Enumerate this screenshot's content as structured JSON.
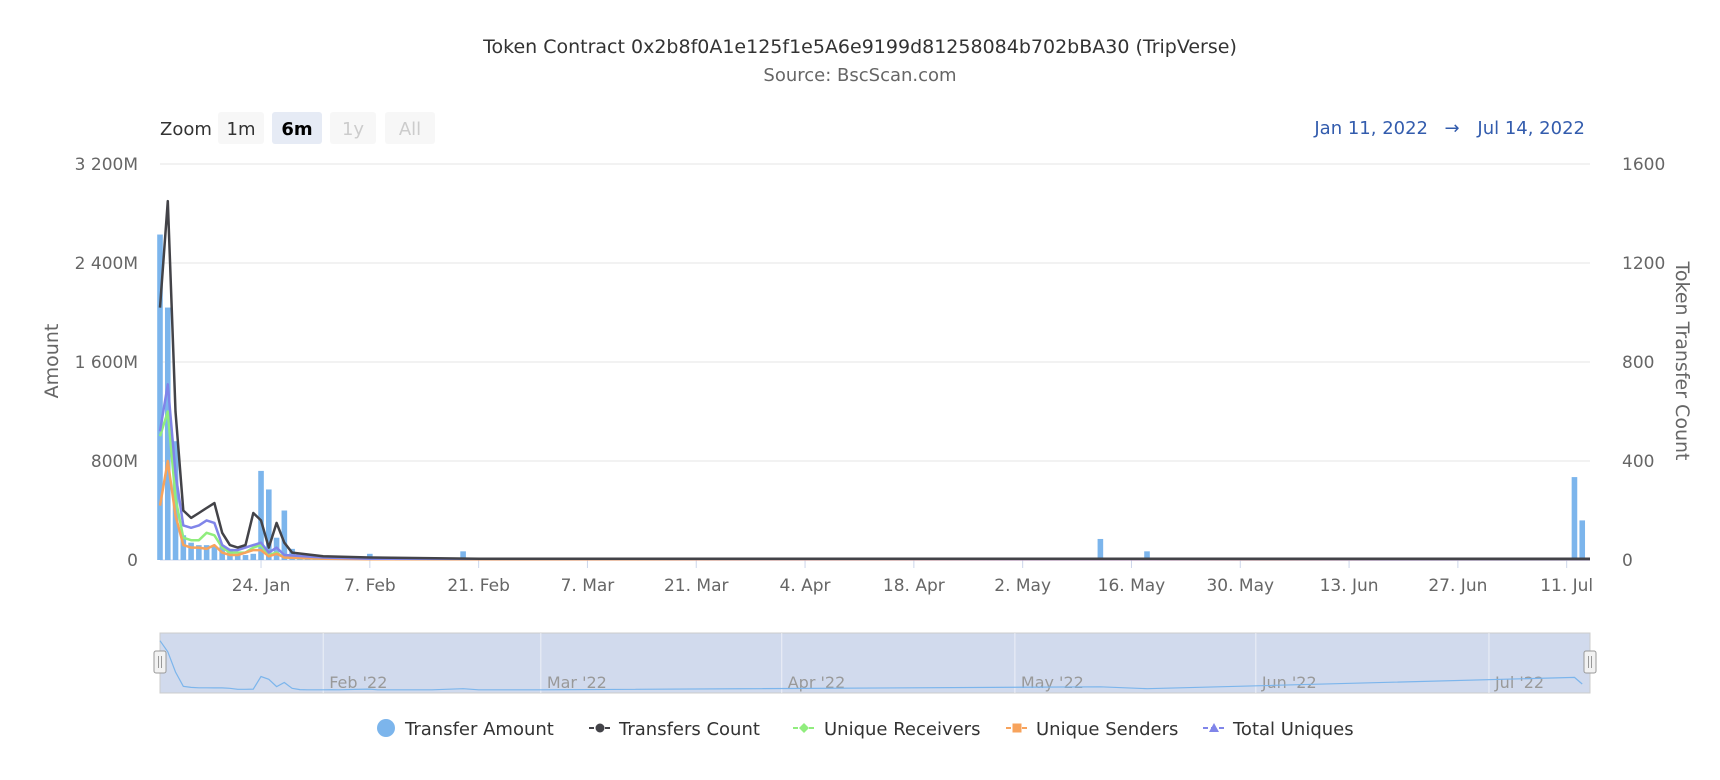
{
  "title": "Token Contract 0x2b8f0A1e125f1e5A6e9199d81258084b702bBA30 (TripVerse)",
  "subtitle": "Source: BscScan.com",
  "zoom": {
    "label": "Zoom",
    "buttons": [
      {
        "label": "1m",
        "state": "normal"
      },
      {
        "label": "6m",
        "state": "selected"
      },
      {
        "label": "1y",
        "state": "disabled"
      },
      {
        "label": "All",
        "state": "disabled"
      }
    ]
  },
  "range": {
    "from": "Jan 11, 2022",
    "arrow": "→",
    "to": "Jul 14, 2022"
  },
  "navigator": {
    "labels": [
      "Feb '22",
      "Mar '22",
      "Apr '22",
      "May '22",
      "Jun '22",
      "Jul '22"
    ]
  },
  "chart_data": {
    "type": "bar",
    "x_range": [
      "2022-01-11",
      "2022-07-14"
    ],
    "x_tick_labels": [
      "24. Jan",
      "7. Feb",
      "21. Feb",
      "7. Mar",
      "21. Mar",
      "4. Apr",
      "18. Apr",
      "2. May",
      "16. May",
      "30. May",
      "13. Jun",
      "27. Jun",
      "11. Jul"
    ],
    "y_left": {
      "label": "Amount",
      "ticks": [
        "0",
        "800M",
        "1 600M",
        "2 400M",
        "3 200M"
      ],
      "range": [
        0,
        3200000000
      ]
    },
    "y_right": {
      "label": "Token Transfer Count",
      "ticks": [
        "0",
        "400",
        "800",
        "1200",
        "1600"
      ],
      "range": [
        0,
        1600
      ]
    },
    "grid": true,
    "legend_position": "bottom",
    "series": [
      {
        "name": "Transfer Amount",
        "type": "column",
        "axis": "left",
        "color": "#7cb5ec",
        "points": [
          [
            "2022-01-11",
            2630000000
          ],
          [
            "2022-01-12",
            2040000000
          ],
          [
            "2022-01-13",
            960000000
          ],
          [
            "2022-01-14",
            200000000
          ],
          [
            "2022-01-15",
            140000000
          ],
          [
            "2022-01-16",
            120000000
          ],
          [
            "2022-01-17",
            120000000
          ],
          [
            "2022-01-18",
            110000000
          ],
          [
            "2022-01-19",
            110000000
          ],
          [
            "2022-01-20",
            90000000
          ],
          [
            "2022-01-21",
            40000000
          ],
          [
            "2022-01-22",
            40000000
          ],
          [
            "2022-01-23",
            50000000
          ],
          [
            "2022-01-24",
            720000000
          ],
          [
            "2022-01-25",
            570000000
          ],
          [
            "2022-01-26",
            180000000
          ],
          [
            "2022-01-27",
            400000000
          ],
          [
            "2022-01-28",
            90000000
          ],
          [
            "2022-01-29",
            20000000
          ],
          [
            "2022-01-30",
            10000000
          ],
          [
            "2022-01-31",
            10000000
          ],
          [
            "2022-02-01",
            10000000
          ],
          [
            "2022-02-02",
            15000000
          ],
          [
            "2022-02-03",
            10000000
          ],
          [
            "2022-02-05",
            30000000
          ],
          [
            "2022-02-07",
            50000000
          ],
          [
            "2022-02-08",
            10000000
          ],
          [
            "2022-02-11",
            10000000
          ],
          [
            "2022-02-15",
            10000000
          ],
          [
            "2022-02-19",
            70000000
          ],
          [
            "2022-02-21",
            10000000
          ],
          [
            "2022-03-01",
            10000000
          ],
          [
            "2022-05-12",
            170000000
          ],
          [
            "2022-05-18",
            70000000
          ],
          [
            "2022-07-12",
            670000000
          ],
          [
            "2022-07-13",
            320000000
          ]
        ]
      },
      {
        "name": "Transfers Count",
        "type": "line",
        "axis": "right",
        "color": "#434348",
        "points": [
          [
            "2022-01-11",
            1020
          ],
          [
            "2022-01-12",
            1450
          ],
          [
            "2022-01-13",
            600
          ],
          [
            "2022-01-14",
            200
          ],
          [
            "2022-01-15",
            170
          ],
          [
            "2022-01-16",
            190
          ],
          [
            "2022-01-17",
            210
          ],
          [
            "2022-01-18",
            230
          ],
          [
            "2022-01-19",
            110
          ],
          [
            "2022-01-20",
            60
          ],
          [
            "2022-01-21",
            50
          ],
          [
            "2022-01-22",
            60
          ],
          [
            "2022-01-23",
            190
          ],
          [
            "2022-01-24",
            160
          ],
          [
            "2022-01-25",
            50
          ],
          [
            "2022-01-26",
            150
          ],
          [
            "2022-01-27",
            70
          ],
          [
            "2022-01-28",
            30
          ],
          [
            "2022-02-01",
            15
          ],
          [
            "2022-02-07",
            10
          ],
          [
            "2022-02-21",
            5
          ],
          [
            "2022-07-14",
            5
          ]
        ]
      },
      {
        "name": "Unique Receivers",
        "type": "line",
        "axis": "right",
        "color": "#90ed7d",
        "points": [
          [
            "2022-01-11",
            500
          ],
          [
            "2022-01-12",
            600
          ],
          [
            "2022-01-13",
            250
          ],
          [
            "2022-01-14",
            90
          ],
          [
            "2022-01-15",
            80
          ],
          [
            "2022-01-16",
            80
          ],
          [
            "2022-01-17",
            110
          ],
          [
            "2022-01-18",
            100
          ],
          [
            "2022-01-19",
            50
          ],
          [
            "2022-01-20",
            30
          ],
          [
            "2022-01-21",
            30
          ],
          [
            "2022-01-22",
            30
          ],
          [
            "2022-01-23",
            50
          ],
          [
            "2022-01-24",
            60
          ],
          [
            "2022-01-25",
            20
          ],
          [
            "2022-01-26",
            30
          ],
          [
            "2022-01-27",
            10
          ],
          [
            "2022-02-01",
            5
          ],
          [
            "2022-02-07",
            5
          ],
          [
            "2022-07-14",
            2
          ]
        ]
      },
      {
        "name": "Unique Senders",
        "type": "line",
        "axis": "right",
        "color": "#f7a35c",
        "points": [
          [
            "2022-01-11",
            220
          ],
          [
            "2022-01-12",
            400
          ],
          [
            "2022-01-13",
            180
          ],
          [
            "2022-01-14",
            60
          ],
          [
            "2022-01-15",
            50
          ],
          [
            "2022-01-16",
            50
          ],
          [
            "2022-01-17",
            45
          ],
          [
            "2022-01-18",
            60
          ],
          [
            "2022-01-19",
            30
          ],
          [
            "2022-01-20",
            20
          ],
          [
            "2022-01-21",
            20
          ],
          [
            "2022-01-22",
            30
          ],
          [
            "2022-01-23",
            40
          ],
          [
            "2022-01-24",
            40
          ],
          [
            "2022-01-25",
            15
          ],
          [
            "2022-01-26",
            25
          ],
          [
            "2022-01-27",
            10
          ],
          [
            "2022-02-01",
            5
          ],
          [
            "2022-02-07",
            3
          ],
          [
            "2022-07-14",
            2
          ]
        ]
      },
      {
        "name": "Total Uniques",
        "type": "line",
        "axis": "right",
        "color": "#8085e9",
        "points": [
          [
            "2022-01-11",
            520
          ],
          [
            "2022-01-12",
            710
          ],
          [
            "2022-01-13",
            350
          ],
          [
            "2022-01-14",
            140
          ],
          [
            "2022-01-15",
            130
          ],
          [
            "2022-01-16",
            140
          ],
          [
            "2022-01-17",
            160
          ],
          [
            "2022-01-18",
            150
          ],
          [
            "2022-01-19",
            60
          ],
          [
            "2022-01-20",
            40
          ],
          [
            "2022-01-21",
            40
          ],
          [
            "2022-01-22",
            50
          ],
          [
            "2022-01-23",
            60
          ],
          [
            "2022-01-24",
            70
          ],
          [
            "2022-01-25",
            30
          ],
          [
            "2022-01-26",
            50
          ],
          [
            "2022-01-27",
            20
          ],
          [
            "2022-02-01",
            10
          ],
          [
            "2022-02-07",
            5
          ],
          [
            "2022-07-14",
            3
          ]
        ]
      }
    ]
  }
}
